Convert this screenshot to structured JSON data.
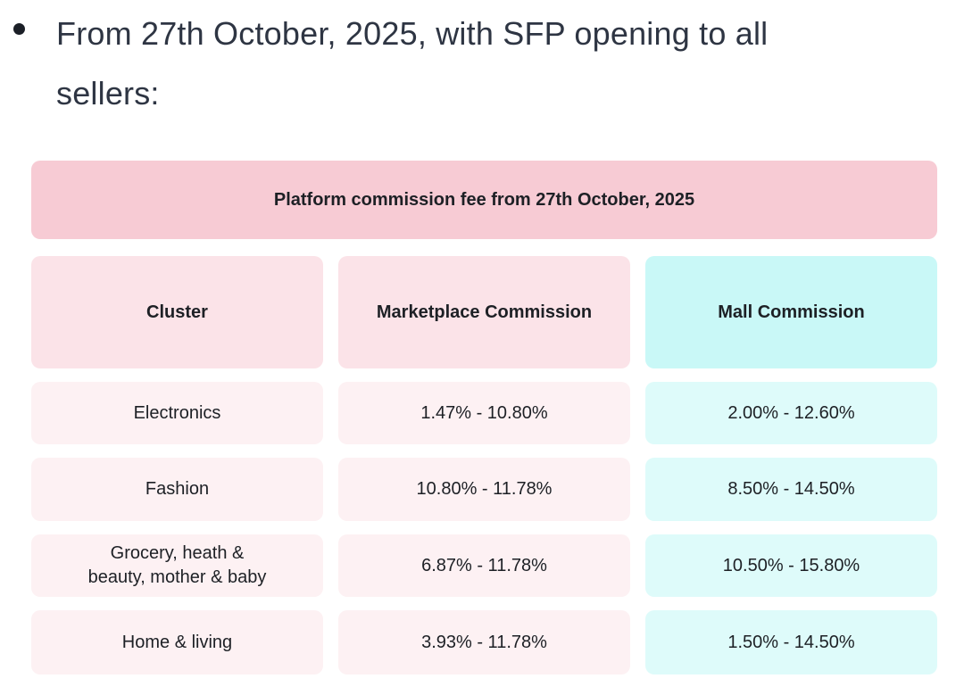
{
  "theme": {
    "page-bg": "#ffffff",
    "bullet-color": "#1b1f27",
    "intro-text": "#2e3543",
    "banner-bg": "#f7cbd4",
    "header-pink-bg": "#fbe3e8",
    "header-cyan-bg": "#c9f8f7",
    "row-pink-bg": "#fdf1f3",
    "row-cyan-bg": "#defbfa",
    "table-text": "#1d2025"
  },
  "intro": {
    "bullet_text": "From 27th October, 2025, with SFP opening to all\nsellers:"
  },
  "table": {
    "title": "Platform commission fee from 27th October, 2025",
    "columns": {
      "0": {
        "label": "Cluster"
      },
      "1": {
        "label": "Marketplace Commission"
      },
      "2": {
        "label": "Mall Commission"
      }
    },
    "rows": {
      "0": {
        "cluster": "Electronics",
        "marketplace": "1.47% - 10.80%",
        "mall": "2.00% - 12.60%"
      },
      "1": {
        "cluster": "Fashion",
        "marketplace": "10.80% - 11.78%",
        "mall": "8.50% - 14.50%"
      },
      "2": {
        "cluster": "Grocery, heath &\nbeauty, mother & baby",
        "marketplace": "6.87% - 11.78%",
        "mall": "10.50% - 15.80%"
      },
      "3": {
        "cluster": "Home & living",
        "marketplace": "3.93% - 11.78%",
        "mall": "1.50% - 14.50%"
      }
    }
  }
}
